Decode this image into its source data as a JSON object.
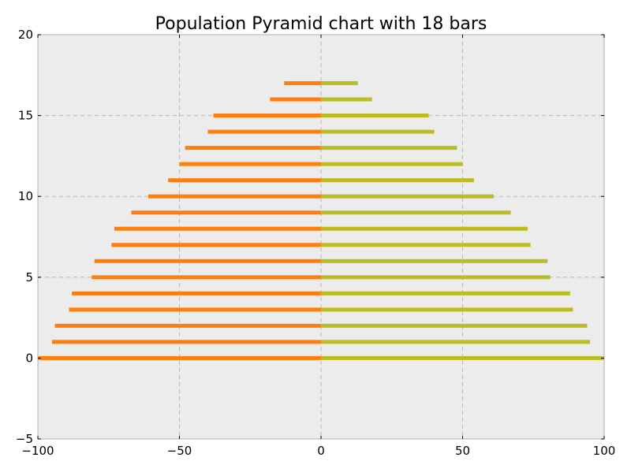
{
  "chart_data": {
    "type": "bar",
    "orientation": "horizontal",
    "title": "Population Pyramid chart with 18 bars",
    "xlabel": "",
    "ylabel": "",
    "xlim": [
      -100,
      100
    ],
    "ylim": [
      -5,
      20
    ],
    "x_ticks": [
      -100,
      -50,
      0,
      50,
      100
    ],
    "x_tick_labels": [
      "−100",
      "−50",
      "0",
      "50",
      "100"
    ],
    "y_ticks": [
      -5,
      0,
      5,
      10,
      15,
      20
    ],
    "y_tick_labels": [
      "−5",
      "0",
      "5",
      "10",
      "15",
      "20"
    ],
    "grid": true,
    "legend": "none",
    "background": "#ececec",
    "categories": [
      0,
      1,
      2,
      3,
      4,
      5,
      6,
      7,
      8,
      9,
      10,
      11,
      12,
      13,
      14,
      15,
      16,
      17
    ],
    "series": [
      {
        "color": "#ff7f0e",
        "values": [
          -100,
          -95,
          -94,
          -89,
          -88,
          -81,
          -80,
          -74,
          -73,
          -67,
          -61,
          -54,
          -50,
          -48,
          -40,
          -38,
          -18,
          -13
        ]
      },
      {
        "color": "#bcbd22",
        "values": [
          100,
          95,
          94,
          89,
          88,
          81,
          80,
          74,
          73,
          67,
          61,
          54,
          50,
          48,
          40,
          38,
          18,
          13
        ]
      }
    ]
  }
}
